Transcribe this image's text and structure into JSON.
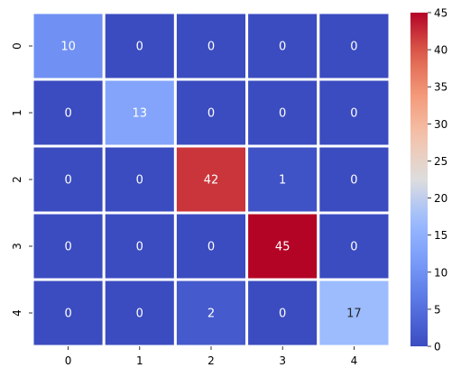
{
  "chart_data": {
    "type": "heatmap",
    "title": "",
    "xlabel": "",
    "ylabel": "",
    "x_categories": [
      "0",
      "1",
      "2",
      "3",
      "4"
    ],
    "y_categories": [
      "0",
      "1",
      "2",
      "3",
      "4"
    ],
    "values": [
      [
        10,
        0,
        0,
        0,
        0
      ],
      [
        0,
        13,
        0,
        0,
        0
      ],
      [
        0,
        0,
        42,
        1,
        0
      ],
      [
        0,
        0,
        0,
        45,
        0
      ],
      [
        0,
        0,
        2,
        0,
        17
      ]
    ],
    "colormap": "coolwarm",
    "vmin": 0,
    "vmax": 45,
    "annotate": true,
    "cell_separator_color": "#ffffff",
    "colorbar": {
      "ticks": [
        0,
        5,
        10,
        15,
        20,
        25,
        30,
        35,
        40,
        45
      ],
      "tick_labels": [
        "0",
        "5",
        "10",
        "15",
        "20",
        "25",
        "30",
        "35",
        "40",
        "45"
      ]
    }
  }
}
